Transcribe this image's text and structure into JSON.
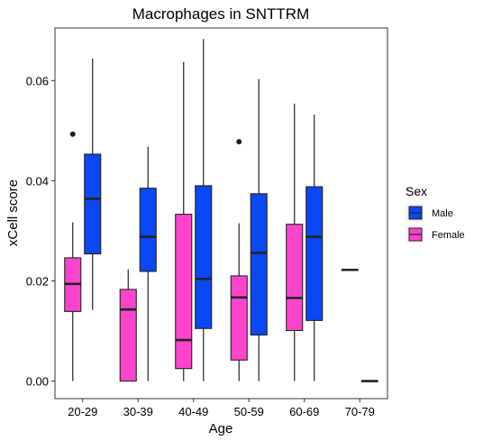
{
  "chart_data": {
    "type": "boxplot",
    "title": "Macrophages in SNTTRM",
    "xlabel": "Age",
    "ylabel": "xCell score",
    "categories": [
      "20-29",
      "30-39",
      "40-49",
      "50-59",
      "60-69",
      "70-79"
    ],
    "ylim": [
      -0.0035,
      0.0705
    ],
    "yticks": [
      0.0,
      0.02,
      0.04,
      0.06
    ],
    "ytick_labels": [
      "0.00",
      "0.02",
      "0.04",
      "0.06"
    ],
    "grid": false,
    "legend": {
      "title": "Sex",
      "position": "right",
      "items": [
        {
          "label": "Male",
          "color": "#0a47f5"
        },
        {
          "label": "Female",
          "color": "#ff44cc"
        }
      ]
    },
    "series": [
      {
        "name": "Male",
        "color": "#0a47f5",
        "boxes": [
          {
            "category": "20-29",
            "min": 0.0142,
            "q1": 0.0254,
            "median": 0.0364,
            "q3": 0.0453,
            "max": 0.0644,
            "outliers": []
          },
          {
            "category": "30-39",
            "min": 0.0,
            "q1": 0.0219,
            "median": 0.0288,
            "q3": 0.0385,
            "max": 0.0468,
            "outliers": []
          },
          {
            "category": "40-49",
            "min": 0.0,
            "q1": 0.0105,
            "median": 0.0204,
            "q3": 0.039,
            "max": 0.0683,
            "outliers": []
          },
          {
            "category": "50-59",
            "min": 0.0,
            "q1": 0.0092,
            "median": 0.0256,
            "q3": 0.0374,
            "max": 0.0603,
            "outliers": []
          },
          {
            "category": "60-69",
            "min": 0.0,
            "q1": 0.0121,
            "median": 0.0288,
            "q3": 0.0388,
            "max": 0.0532,
            "outliers": []
          },
          {
            "category": "70-79",
            "min": 0.0,
            "q1": 0.0,
            "median": 0.0,
            "q3": 0.0,
            "max": 0.0,
            "outliers": []
          }
        ]
      },
      {
        "name": "Female",
        "color": "#ff44cc",
        "boxes": [
          {
            "category": "20-29",
            "min": 0.0,
            "q1": 0.0139,
            "median": 0.0194,
            "q3": 0.0246,
            "max": 0.0317,
            "outliers": [
              0.0493
            ]
          },
          {
            "category": "30-39",
            "min": 0.0,
            "q1": 0.0,
            "median": 0.0143,
            "q3": 0.0183,
            "max": 0.0223,
            "outliers": []
          },
          {
            "category": "40-49",
            "min": 0.0,
            "q1": 0.0025,
            "median": 0.0082,
            "q3": 0.0333,
            "max": 0.0637,
            "outliers": []
          },
          {
            "category": "50-59",
            "min": 0.0,
            "q1": 0.0042,
            "median": 0.0167,
            "q3": 0.021,
            "max": 0.0315,
            "outliers": [
              0.0478
            ]
          },
          {
            "category": "60-69",
            "min": 0.0,
            "q1": 0.0101,
            "median": 0.0166,
            "q3": 0.0313,
            "max": 0.0554,
            "outliers": []
          },
          {
            "category": "70-79",
            "min": 0.0222,
            "q1": 0.0222,
            "median": 0.0222,
            "q3": 0.0222,
            "max": 0.0222,
            "outliers": []
          }
        ]
      }
    ]
  }
}
